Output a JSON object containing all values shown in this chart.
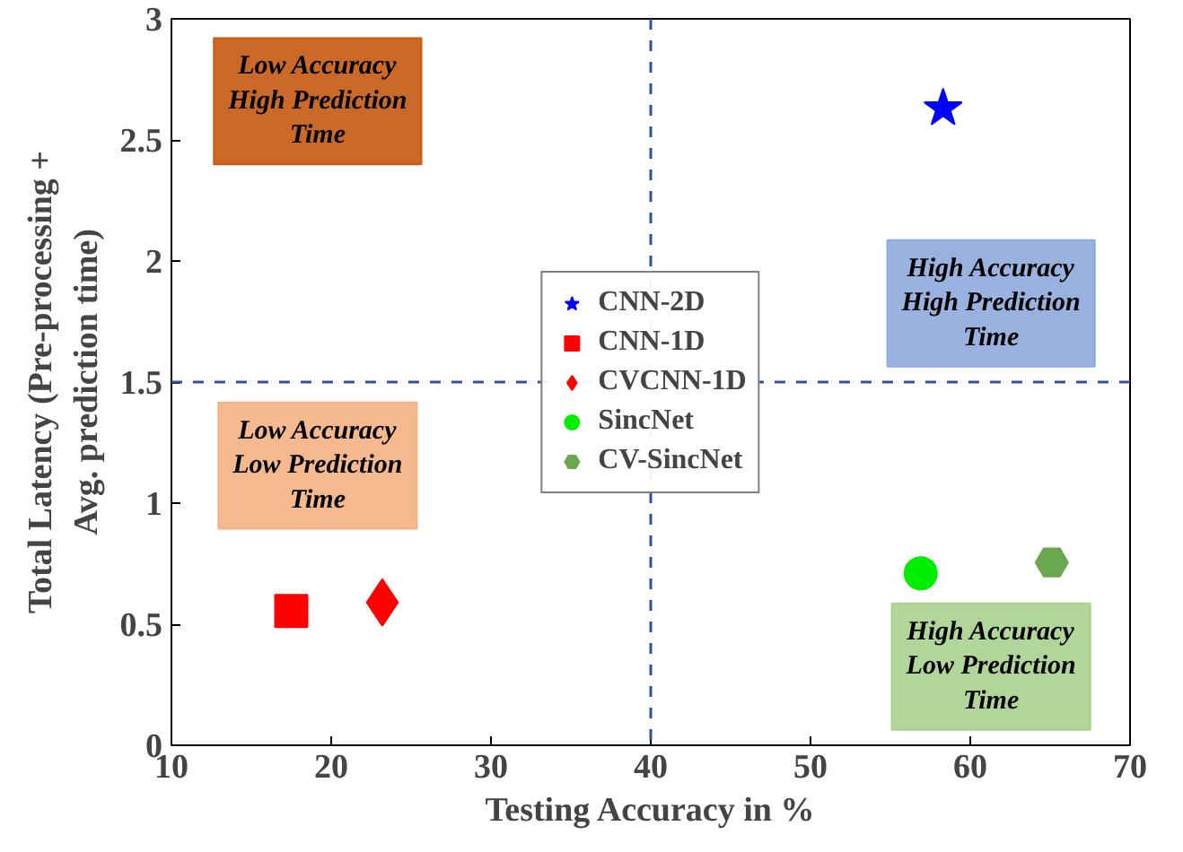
{
  "chart_data": {
    "type": "scatter",
    "xlabel": "Testing Accuracy in %",
    "ylabel": "Total Latency (Pre-processing + Avg. prediction time)",
    "xlim": [
      10,
      70
    ],
    "xticks": [
      10,
      20,
      30,
      40,
      50,
      60,
      70
    ],
    "ylim": [
      0,
      3
    ],
    "yticks": [
      0,
      0.5,
      1,
      1.5,
      2,
      2.5,
      3
    ],
    "grid": false,
    "legend": "center",
    "series": [
      {
        "name": "CNN-2D",
        "color": "#0000ff",
        "marker": "star",
        "x": [
          58.3
        ],
        "values": [
          2.63
        ]
      },
      {
        "name": "CNN-1D",
        "color": "#ff0000",
        "marker": "square",
        "x": [
          17.5
        ],
        "values": [
          0.555
        ]
      },
      {
        "name": "CVCNN-1D",
        "color": "#ff0000",
        "marker": "diamond",
        "x": [
          23.2
        ],
        "values": [
          0.59
        ]
      },
      {
        "name": "SincNet",
        "color": "#00ee00",
        "marker": "circle",
        "x": [
          56.9
        ],
        "values": [
          0.71
        ]
      },
      {
        "name": "CV-SincNet",
        "color": "#6aa84f",
        "x": [
          65.1
        ],
        "values": [
          0.755
        ]
      }
    ],
    "ref_lines": [
      {
        "axis": "x",
        "value": 40,
        "color": "#2f5597",
        "line_style": "dashed"
      },
      {
        "axis": "y",
        "value": 1.5,
        "color": "#2f5597",
        "line_style": "dashed"
      }
    ],
    "annotations": [
      "Low Accuracy High Prediction Time",
      "High Accuracy High Prediction Time",
      "Low Accuracy Low Prediction Time",
      "High Accuracy Low Prediction Time"
    ]
  }
}
